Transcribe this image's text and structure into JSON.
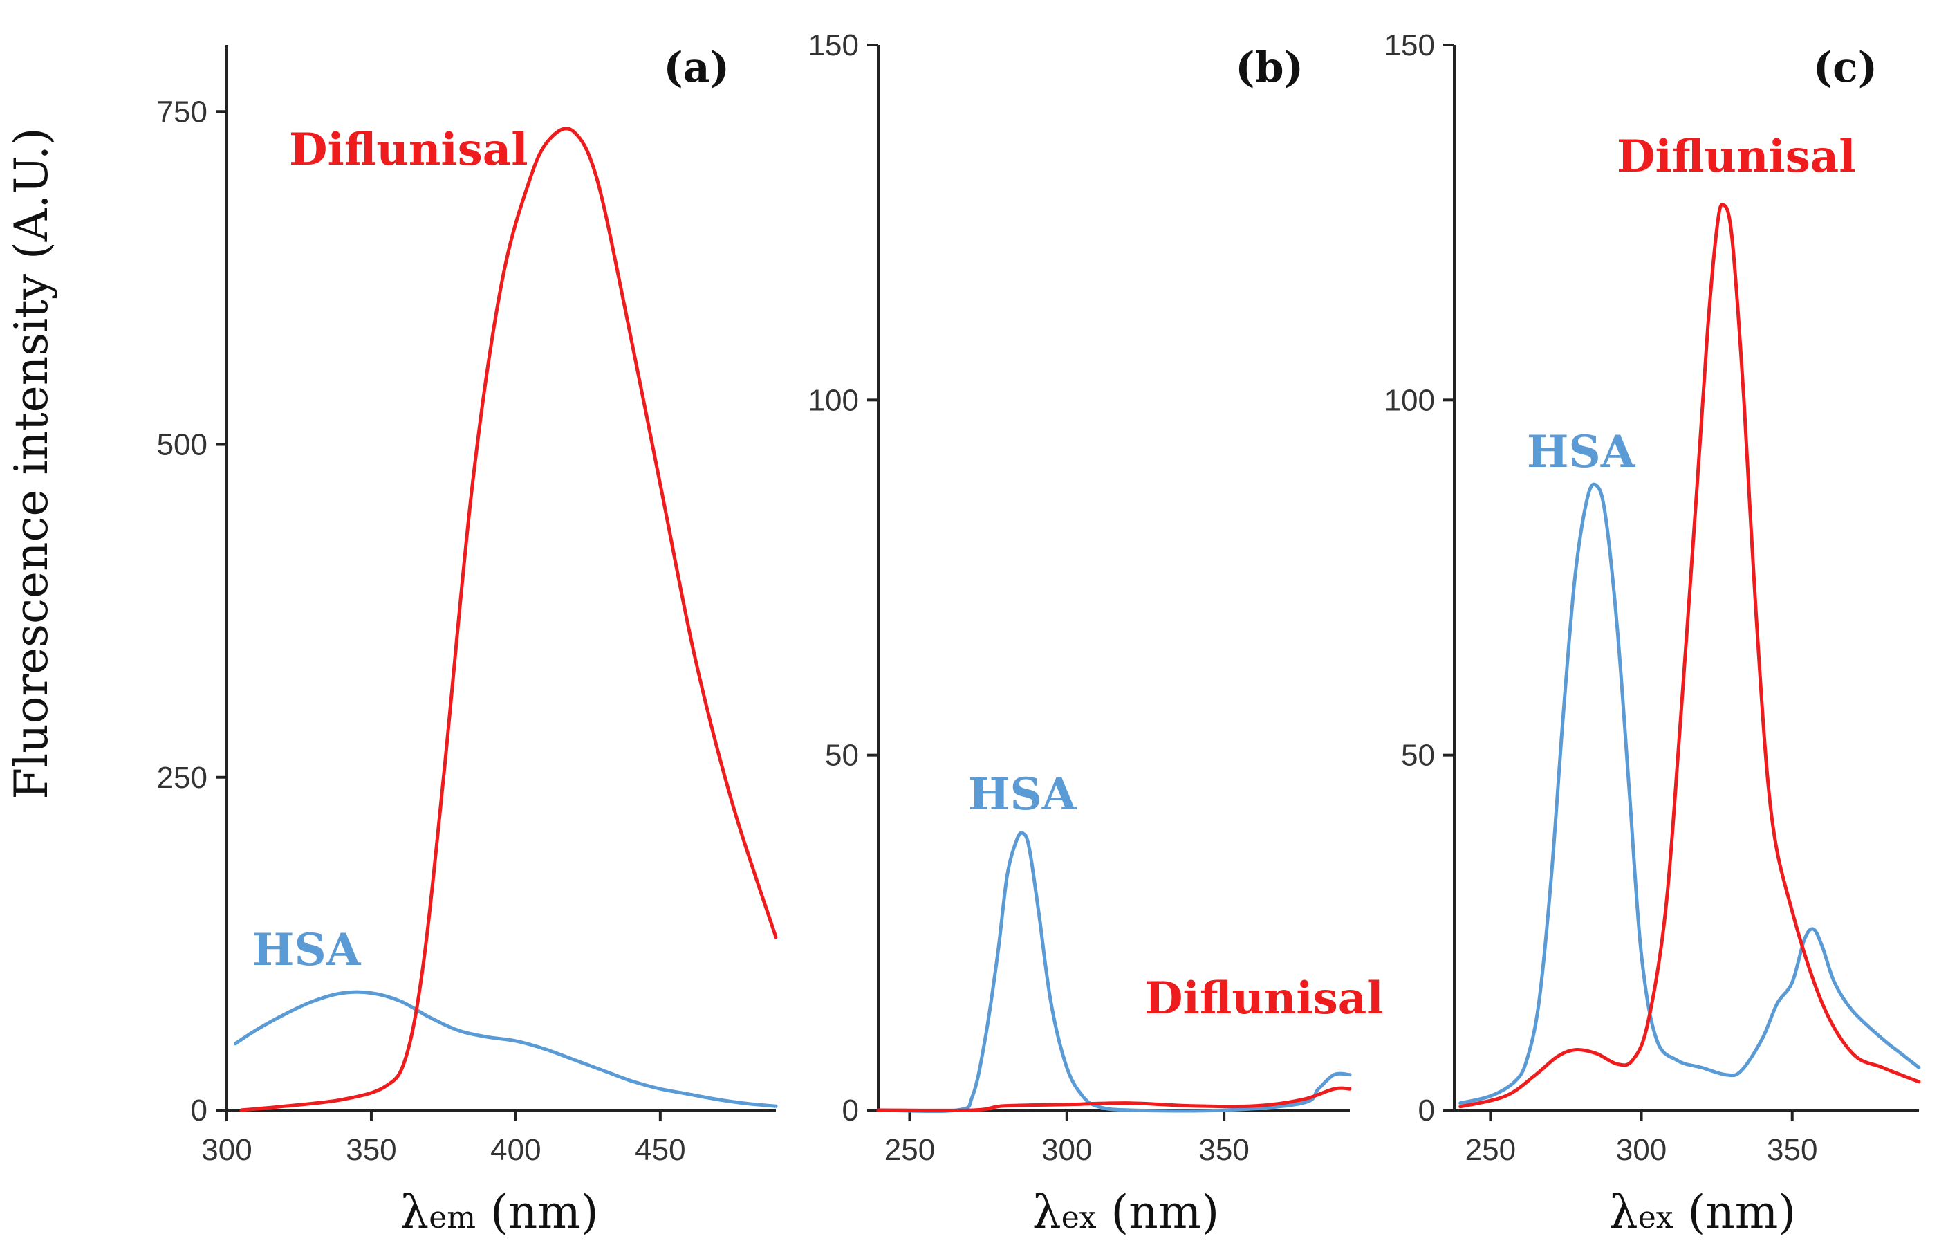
{
  "y_axis_title": "Fluorescence intensity (A.U.)",
  "chart_data": [
    {
      "type": "line",
      "panel": "(a)",
      "xlabel_symbol": "λ",
      "xlabel_sub": "em",
      "xlabel_unit": " (nm)",
      "xlim": [
        300,
        490
      ],
      "ylim": [
        0,
        800
      ],
      "xticks": [
        300,
        350,
        400,
        450
      ],
      "yticks": [
        0,
        250,
        500,
        750
      ],
      "series": [
        {
          "name": "HSA",
          "color": "#5b9bd5",
          "x": [
            303,
            310,
            320,
            330,
            340,
            350,
            360,
            370,
            380,
            390,
            400,
            410,
            420,
            430,
            440,
            450,
            460,
            470,
            480,
            490
          ],
          "y": [
            50,
            60,
            72,
            82,
            88,
            88,
            82,
            70,
            60,
            55,
            52,
            46,
            38,
            30,
            22,
            16,
            12,
            8,
            5,
            3
          ]
        },
        {
          "name": "Diflunisal",
          "color": "#ee1c1c",
          "x": [
            305,
            320,
            340,
            355,
            362,
            368,
            375,
            385,
            395,
            405,
            412,
            420,
            428,
            438,
            450,
            462,
            475,
            490
          ],
          "y": [
            0,
            3,
            8,
            18,
            40,
            110,
            250,
            470,
            620,
            700,
            730,
            735,
            700,
            600,
            470,
            340,
            230,
            130
          ]
        }
      ]
    },
    {
      "type": "line",
      "panel": "(b)",
      "xlabel_symbol": "λ",
      "xlabel_sub": "ex",
      "xlabel_unit": " (nm)",
      "xlim": [
        240,
        390
      ],
      "ylim": [
        0,
        150
      ],
      "xticks": [
        250,
        300,
        350
      ],
      "yticks": [
        0,
        50,
        100,
        150
      ],
      "series": [
        {
          "name": "HSA",
          "color": "#5b9bd5",
          "x": [
            240,
            265,
            270,
            274,
            278,
            281,
            284,
            286,
            288,
            291,
            295,
            300,
            305,
            310,
            320,
            350,
            375,
            380,
            385,
            390
          ],
          "y": [
            0,
            0,
            2,
            10,
            22,
            33,
            38,
            39,
            37,
            28,
            15,
            6,
            2,
            0.5,
            0,
            0,
            1,
            3,
            5,
            5
          ]
        },
        {
          "name": "Diflunisal",
          "color": "#ee1c1c",
          "x": [
            240,
            270,
            280,
            300,
            320,
            340,
            360,
            375,
            385,
            390
          ],
          "y": [
            0,
            0,
            0.6,
            0.8,
            1,
            0.6,
            0.6,
            1.5,
            3,
            3
          ]
        }
      ]
    },
    {
      "type": "line",
      "panel": "(c)",
      "xlabel_symbol": "λ",
      "xlabel_sub": "ex",
      "xlabel_unit": " (nm)",
      "xlim": [
        238,
        392
      ],
      "ylim": [
        0,
        150
      ],
      "xticks": [
        250,
        300,
        350
      ],
      "yticks": [
        0,
        50,
        100,
        150
      ],
      "series": [
        {
          "name": "HSA",
          "color": "#5b9bd5",
          "x": [
            240,
            250,
            258,
            262,
            266,
            270,
            274,
            278,
            282,
            285,
            288,
            292,
            296,
            300,
            305,
            312,
            320,
            328,
            333,
            340,
            345,
            350,
            354,
            357,
            360,
            364,
            370,
            380,
            386,
            392
          ],
          "y": [
            1,
            2,
            4,
            7,
            15,
            32,
            55,
            75,
            86,
            88,
            84,
            68,
            45,
            22,
            10,
            7,
            6,
            5,
            5.5,
            10,
            15,
            18,
            24,
            25.5,
            23,
            18,
            14,
            10,
            8,
            6
          ]
        },
        {
          "name": "Diflunisal",
          "color": "#ee1c1c",
          "x": [
            240,
            255,
            265,
            272,
            278,
            285,
            292,
            297,
            302,
            308,
            313,
            318,
            322,
            325,
            327,
            330,
            334,
            338,
            343,
            350,
            360,
            370,
            380,
            392
          ],
          "y": [
            0.5,
            2,
            5,
            7.5,
            8.5,
            8,
            6.5,
            7,
            12,
            28,
            55,
            85,
            110,
            124,
            127.5,
            123,
            100,
            70,
            42,
            28,
            15,
            8,
            6,
            4
          ]
        }
      ]
    }
  ]
}
